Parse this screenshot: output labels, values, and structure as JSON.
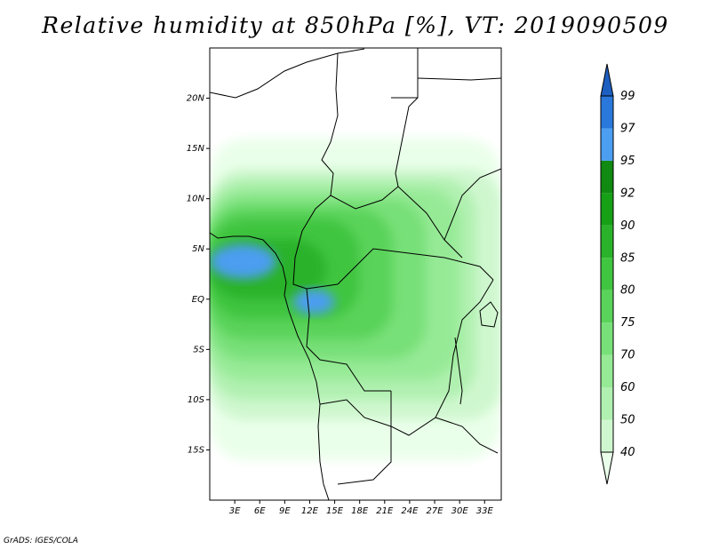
{
  "title": "Relative humidity at 850hPa [%], VT: 2019090509",
  "credit": "GrADS: IGES/COLA",
  "map": {
    "lon_range": [
      0,
      35
    ],
    "lat_range": [
      -20,
      25
    ],
    "lat_labels": [
      {
        "value": 20,
        "text": "20N"
      },
      {
        "value": 15,
        "text": "15N"
      },
      {
        "value": 10,
        "text": "10N"
      },
      {
        "value": 5,
        "text": "5N"
      },
      {
        "value": 0,
        "text": "EQ"
      },
      {
        "value": -5,
        "text": "5S"
      },
      {
        "value": -10,
        "text": "10S"
      },
      {
        "value": -15,
        "text": "15S"
      }
    ],
    "lon_labels": [
      {
        "value": 3,
        "text": "3E"
      },
      {
        "value": 6,
        "text": "6E"
      },
      {
        "value": 9,
        "text": "9E"
      },
      {
        "value": 12,
        "text": "12E"
      },
      {
        "value": 15,
        "text": "15E"
      },
      {
        "value": 18,
        "text": "18E"
      },
      {
        "value": 21,
        "text": "21E"
      },
      {
        "value": 24,
        "text": "24E"
      },
      {
        "value": 27,
        "text": "27E"
      },
      {
        "value": 30,
        "text": "30E"
      },
      {
        "value": 33,
        "text": "33E"
      }
    ]
  },
  "colorbar": {
    "levels": [
      "40",
      "50",
      "60",
      "70",
      "75",
      "80",
      "85",
      "90",
      "92",
      "95",
      "97",
      "99"
    ],
    "colors": [
      "#eaffea",
      "#cff7cf",
      "#b0f0b0",
      "#96ea96",
      "#78e078",
      "#5ad35a",
      "#40c540",
      "#2ab22a",
      "#16a016",
      "#108a10",
      "#4c9ef0",
      "#2a78dc",
      "#1d5fc0"
    ]
  },
  "fields": [
    {
      "level": 0,
      "color": "#eaffea",
      "lon": [
        0,
        35
      ],
      "lat": [
        -16,
        16
      ]
    },
    {
      "level": 1,
      "color": "#cff7cf",
      "lon": [
        0,
        35
      ],
      "lat": [
        -12,
        13
      ]
    },
    {
      "level": 2,
      "color": "#b0f0b0",
      "lon": [
        0,
        32
      ],
      "lat": [
        -10,
        12
      ]
    },
    {
      "level": 3,
      "color": "#96ea96",
      "lon": [
        0,
        30
      ],
      "lat": [
        -8,
        11
      ]
    },
    {
      "level": 4,
      "color": "#78e078",
      "lon": [
        0,
        26
      ],
      "lat": [
        -6,
        10
      ]
    },
    {
      "level": 5,
      "color": "#5ad35a",
      "lon": [
        0,
        22
      ],
      "lat": [
        -4,
        9
      ]
    },
    {
      "level": 6,
      "color": "#40c540",
      "lon": [
        0,
        18
      ],
      "lat": [
        -2,
        8
      ]
    },
    {
      "level": 7,
      "color": "#2ab22a",
      "lon": [
        0,
        14
      ],
      "lat": [
        0,
        6
      ]
    },
    {
      "level": 10,
      "color": "#4c9ef0",
      "lon": [
        0,
        8
      ],
      "lat": [
        2,
        5.5
      ]
    },
    {
      "level": 10,
      "color": "#4c9ef0",
      "lon": [
        10,
        15
      ],
      "lat": [
        -1.5,
        1
      ]
    }
  ]
}
